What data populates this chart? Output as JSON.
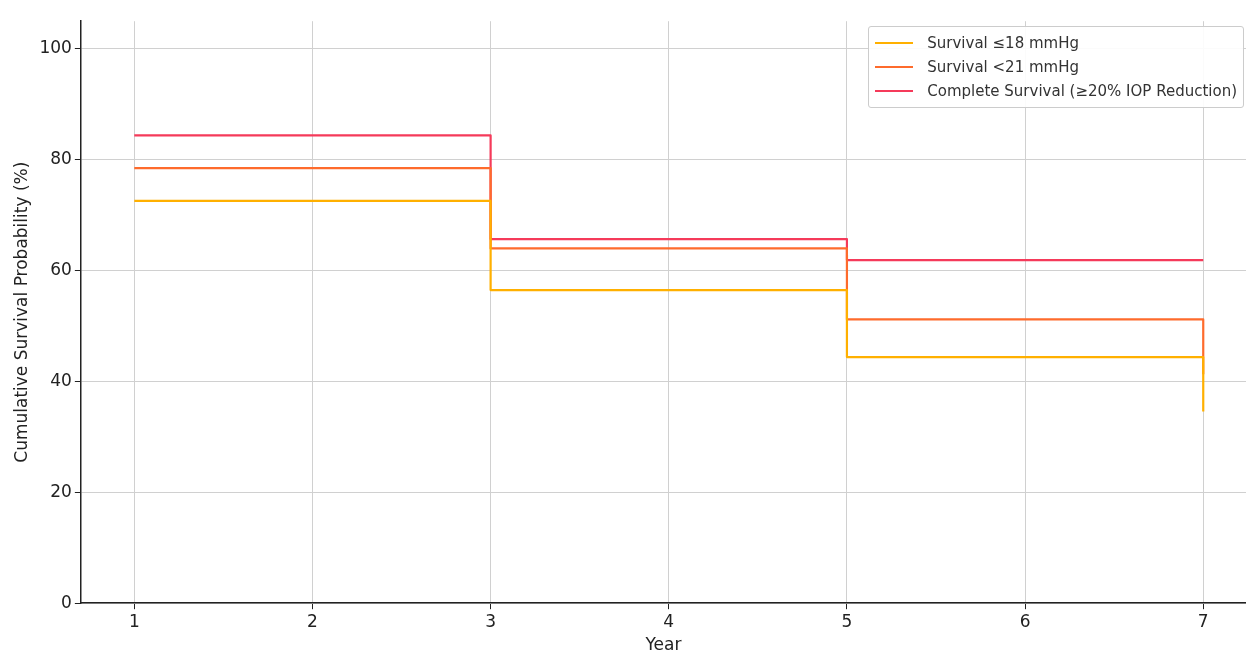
{
  "chart_data": {
    "type": "step",
    "xlabel": "Year",
    "ylabel": "Cumulative Survival Probability (%)",
    "x": [
      1,
      3,
      5,
      7
    ],
    "series": [
      {
        "name": "Survival ≤18 mmHg",
        "color": "#ffb000",
        "values": [
          72.6,
          56.5,
          44.4,
          34.6
        ]
      },
      {
        "name": "Survival <21 mmHg",
        "color": "#fe6b2c",
        "values": [
          78.5,
          64.0,
          51.2,
          41.3
        ]
      },
      {
        "name": "Complete Survival (≥20% IOP Reduction)",
        "color": "#f53a5a",
        "values": [
          84.4,
          65.7,
          61.9,
          61.9
        ]
      }
    ],
    "xlim": [
      0.7,
      7.24
    ],
    "xticks": [
      1,
      2,
      3,
      4,
      5,
      6,
      7
    ],
    "ylim": [
      0,
      105
    ],
    "yticks": [
      0,
      20,
      40,
      60,
      80,
      100
    ],
    "grid": true,
    "legend": "top right",
    "line_style": "solid",
    "marker": "none"
  }
}
